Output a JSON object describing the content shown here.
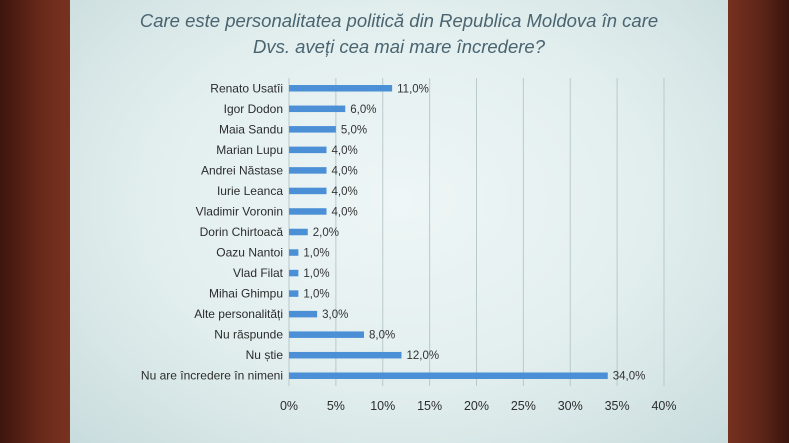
{
  "chart_data": {
    "type": "bar",
    "orientation": "horizontal",
    "title": "Care este personalitatea politică din Republica Moldova în care Dvs. aveți cea mai mare încredere?",
    "title_lines": [
      "Care este personalitatea politică din Republica Moldova în care",
      "Dvs. aveți cea mai mare încredere?"
    ],
    "categories": [
      "Renato Usatîi",
      "Igor Dodon",
      "Maia Sandu",
      "Marian Lupu",
      "Andrei Năstase",
      "Iurie Leanca",
      "Vladimir Voronin",
      "Dorin Chirtoacă",
      "Oazu Nantoi",
      "Vlad Filat",
      "Mihai Ghimpu",
      "Alte personalități",
      "Nu răspunde",
      "Nu știe",
      "Nu are încredere în nimeni"
    ],
    "values": [
      11.0,
      6.0,
      5.0,
      4.0,
      4.0,
      4.0,
      4.0,
      2.0,
      1.0,
      1.0,
      1.0,
      3.0,
      8.0,
      12.0,
      34.0
    ],
    "value_labels": [
      "11,0%",
      "6,0%",
      "5,0%",
      "4,0%",
      "4,0%",
      "4,0%",
      "4,0%",
      "2,0%",
      "1,0%",
      "1,0%",
      "1,0%",
      "3,0%",
      "8,0%",
      "12,0%",
      "34,0%"
    ],
    "xlim": [
      0,
      40
    ],
    "x_ticks": [
      "0%",
      "5%",
      "10%",
      "15%",
      "20%",
      "25%",
      "30%",
      "35%",
      "40%"
    ],
    "grid": true,
    "bar_color": "#4b90d6"
  }
}
